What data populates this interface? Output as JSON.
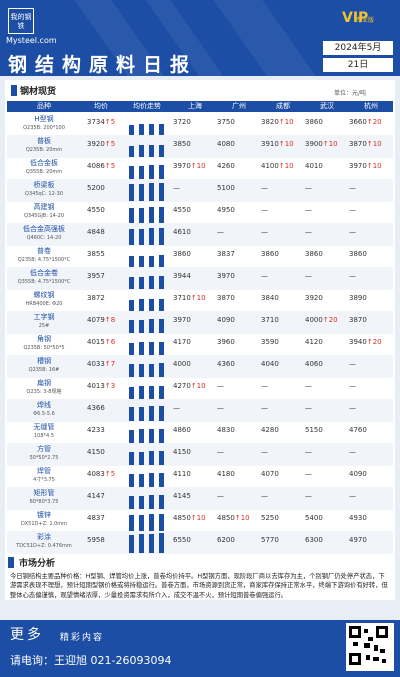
{
  "header": {
    "logo_text": "我的钢铁",
    "logo_site": "Mysteel.com",
    "vip_label": "VIP",
    "vip_sub": "专业版",
    "title": "钢结构原料日报",
    "date_month": "2024年5月",
    "date_day": "21日"
  },
  "section1": {
    "title": "钢材现货",
    "unit": "单位：元/吨"
  },
  "table": {
    "columns": [
      "品种",
      "均价",
      "均价走势",
      "上海",
      "广州",
      "成都",
      "武汉",
      "杭州"
    ],
    "rows": [
      {
        "name": "H型钢",
        "spec": "Q235B: 200*100",
        "avg": "3734",
        "avg_dir": "up",
        "avg_chg": "5",
        "bar": 0.55,
        "sh": "3720",
        "gz": "3750",
        "cd": "3820",
        "cd_chg": "10",
        "cd_dir": "up",
        "wh": "3860",
        "hz": "3660",
        "hz_chg": "20",
        "hz_dir": "up"
      },
      {
        "name": "普板",
        "spec": "Q235B: 20mm",
        "avg": "3920",
        "avg_dir": "up",
        "avg_chg": "5",
        "bar": 0.62,
        "sh": "3850",
        "gz": "4080",
        "cd": "3910",
        "cd_chg": "10",
        "cd_dir": "up",
        "wh": "3900",
        "wh_chg": "10",
        "wh_dir": "up",
        "hz": "3870",
        "hz_chg": "10",
        "hz_dir": "up"
      },
      {
        "name": "低合金板",
        "spec": "Q355B: 20mm",
        "avg": "4086",
        "avg_dir": "up",
        "avg_chg": "5",
        "bar": 0.7,
        "sh": "3970",
        "sh_chg": "10",
        "sh_dir": "up",
        "gz": "4260",
        "cd": "4100",
        "cd_chg": "10",
        "cd_dir": "up",
        "wh": "4010",
        "hz": "3970",
        "hz_chg": "10",
        "hz_dir": "up"
      },
      {
        "name": "桥梁板",
        "spec": "Q345qC: 12-30",
        "avg": "5200",
        "avg_dir": "",
        "avg_chg": "",
        "bar": 0.9,
        "sh": "—",
        "gz": "5100",
        "cd": "—",
        "wh": "—",
        "hz": "—"
      },
      {
        "name": "高建钢",
        "spec": "Q345GJB: 14-20",
        "avg": "4550",
        "avg_dir": "",
        "avg_chg": "",
        "bar": 0.8,
        "sh": "4550",
        "gz": "4950",
        "cd": "—",
        "wh": "—",
        "hz": "—"
      },
      {
        "name": "低合金高强板",
        "spec": "Q460C: 14-20",
        "avg": "4848",
        "avg_dir": "",
        "avg_chg": "",
        "bar": 0.85,
        "sh": "4610",
        "gz": "—",
        "cd": "—",
        "wh": "—",
        "hz": "—"
      },
      {
        "name": "普卷",
        "spec": "Q235B: 4.75*1500*C",
        "avg": "3855",
        "avg_dir": "",
        "avg_chg": "",
        "bar": 0.58,
        "sh": "3860",
        "gz": "3837",
        "cd": "3860",
        "wh": "3860",
        "hz": "3860"
      },
      {
        "name": "低合金卷",
        "spec": "Q355B: 4.75*1500*C",
        "avg": "3957",
        "avg_dir": "",
        "avg_chg": "",
        "bar": 0.64,
        "sh": "3944",
        "gz": "3970",
        "cd": "—",
        "wh": "—",
        "hz": "—"
      },
      {
        "name": "螺纹钢",
        "spec": "HRB400E: Φ20",
        "avg": "3872",
        "avg_dir": "",
        "avg_chg": "",
        "bar": 0.6,
        "sh": "3710",
        "sh_chg": "10",
        "sh_dir": "up",
        "gz": "3870",
        "cd": "3840",
        "wh": "3920",
        "hz": "3890"
      },
      {
        "name": "工字钢",
        "spec": "25#",
        "avg": "4079",
        "avg_dir": "up",
        "avg_chg": "8",
        "bar": 0.7,
        "sh": "3970",
        "gz": "4090",
        "cd": "3710",
        "wh": "4000",
        "wh_chg": "20",
        "wh_dir": "up",
        "hz": "3870"
      },
      {
        "name": "角钢",
        "spec": "Q235B: 50*50*5",
        "avg": "4015",
        "avg_dir": "up",
        "avg_chg": "6",
        "bar": 0.67,
        "sh": "4170",
        "gz": "3960",
        "cd": "3590",
        "wh": "4120",
        "hz": "3940",
        "hz_chg": "20",
        "hz_dir": "up"
      },
      {
        "name": "槽钢",
        "spec": "Q235B: 16#",
        "avg": "4033",
        "avg_dir": "up",
        "avg_chg": "7",
        "bar": 0.68,
        "sh": "4000",
        "gz": "4360",
        "cd": "4040",
        "wh": "4060",
        "hz": "—"
      },
      {
        "name": "扁钢",
        "spec": "Q235: 3-8规格",
        "avg": "4013",
        "avg_dir": "up",
        "avg_chg": "3",
        "bar": 0.66,
        "sh": "4270",
        "sh_chg": "10",
        "sh_dir": "up",
        "gz": "—",
        "cd": "—",
        "wh": "—",
        "hz": "—"
      },
      {
        "name": "焊线",
        "spec": "Φ6.5-5.6",
        "avg": "4366",
        "avg_dir": "",
        "avg_chg": "",
        "bar": 0.75,
        "sh": "—",
        "gz": "—",
        "cd": "—",
        "wh": "—",
        "hz": "—"
      },
      {
        "name": "无缝管",
        "spec": "108*4.5",
        "avg": "4233",
        "avg_dir": "",
        "avg_chg": "",
        "bar": 0.72,
        "sh": "4860",
        "gz": "4830",
        "cd": "4280",
        "wh": "5150",
        "hz": "4760"
      },
      {
        "name": "方管",
        "spec": "50*50*2.75",
        "avg": "4150",
        "avg_dir": "",
        "avg_chg": "",
        "bar": 0.7,
        "sh": "4150",
        "gz": "—",
        "cd": "—",
        "wh": "—",
        "hz": "—"
      },
      {
        "name": "焊管",
        "spec": "4寸*3.75",
        "avg": "4083",
        "avg_dir": "up",
        "avg_chg": "5",
        "bar": 0.69,
        "sh": "4110",
        "gz": "4180",
        "cd": "4070",
        "wh": "—",
        "hz": "4090"
      },
      {
        "name": "矩形管",
        "spec": "60*80*3.75",
        "avg": "4147",
        "avg_dir": "",
        "avg_chg": "",
        "bar": 0.7,
        "sh": "4145",
        "gz": "—",
        "cd": "—",
        "wh": "—",
        "hz": "—"
      },
      {
        "name": "镀锌",
        "spec": "DX51D+Z: 1.0mm",
        "avg": "4837",
        "avg_dir": "",
        "avg_chg": "",
        "bar": 0.85,
        "sh": "4850",
        "sh_chg": "10",
        "sh_dir": "up",
        "gz": "4850",
        "gz_chg": "10",
        "gz_dir": "up",
        "cd": "5250",
        "wh": "5400",
        "hz": "4930"
      },
      {
        "name": "彩涂",
        "spec": "TDC51D+Z: 0.476mm",
        "avg": "5958",
        "avg_dir": "",
        "avg_chg": "",
        "bar": 0.98,
        "sh": "6550",
        "gz": "6200",
        "cd": "5770",
        "wh": "6300",
        "hz": "4970"
      }
    ]
  },
  "section2": {
    "title": "市场分析",
    "text": "今日钢结构主要品种价格：H型钢、焊管均价上涨，普卷均价持平。H型钢方面，现阶段厂商以去库存为主，个别钢厂仍处停产状态，下游需求表现不理想，预计短期型钢价格或将持稳运行。普卷方面，市场资源到货正常，商家库存保持正常水平，终端下游询价有好转，但整体心态偏谨慎，观望情绪浓厚，少量投资需求有所介入，成交不温不火，预计短期普卷偏强运行。"
  },
  "footer": {
    "more": "更多",
    "more_sub": "精彩内容",
    "contact": "请电询：王迎旭  021-26093094"
  },
  "colors": {
    "brand": "#1d4ea5",
    "up": "#d93025"
  }
}
